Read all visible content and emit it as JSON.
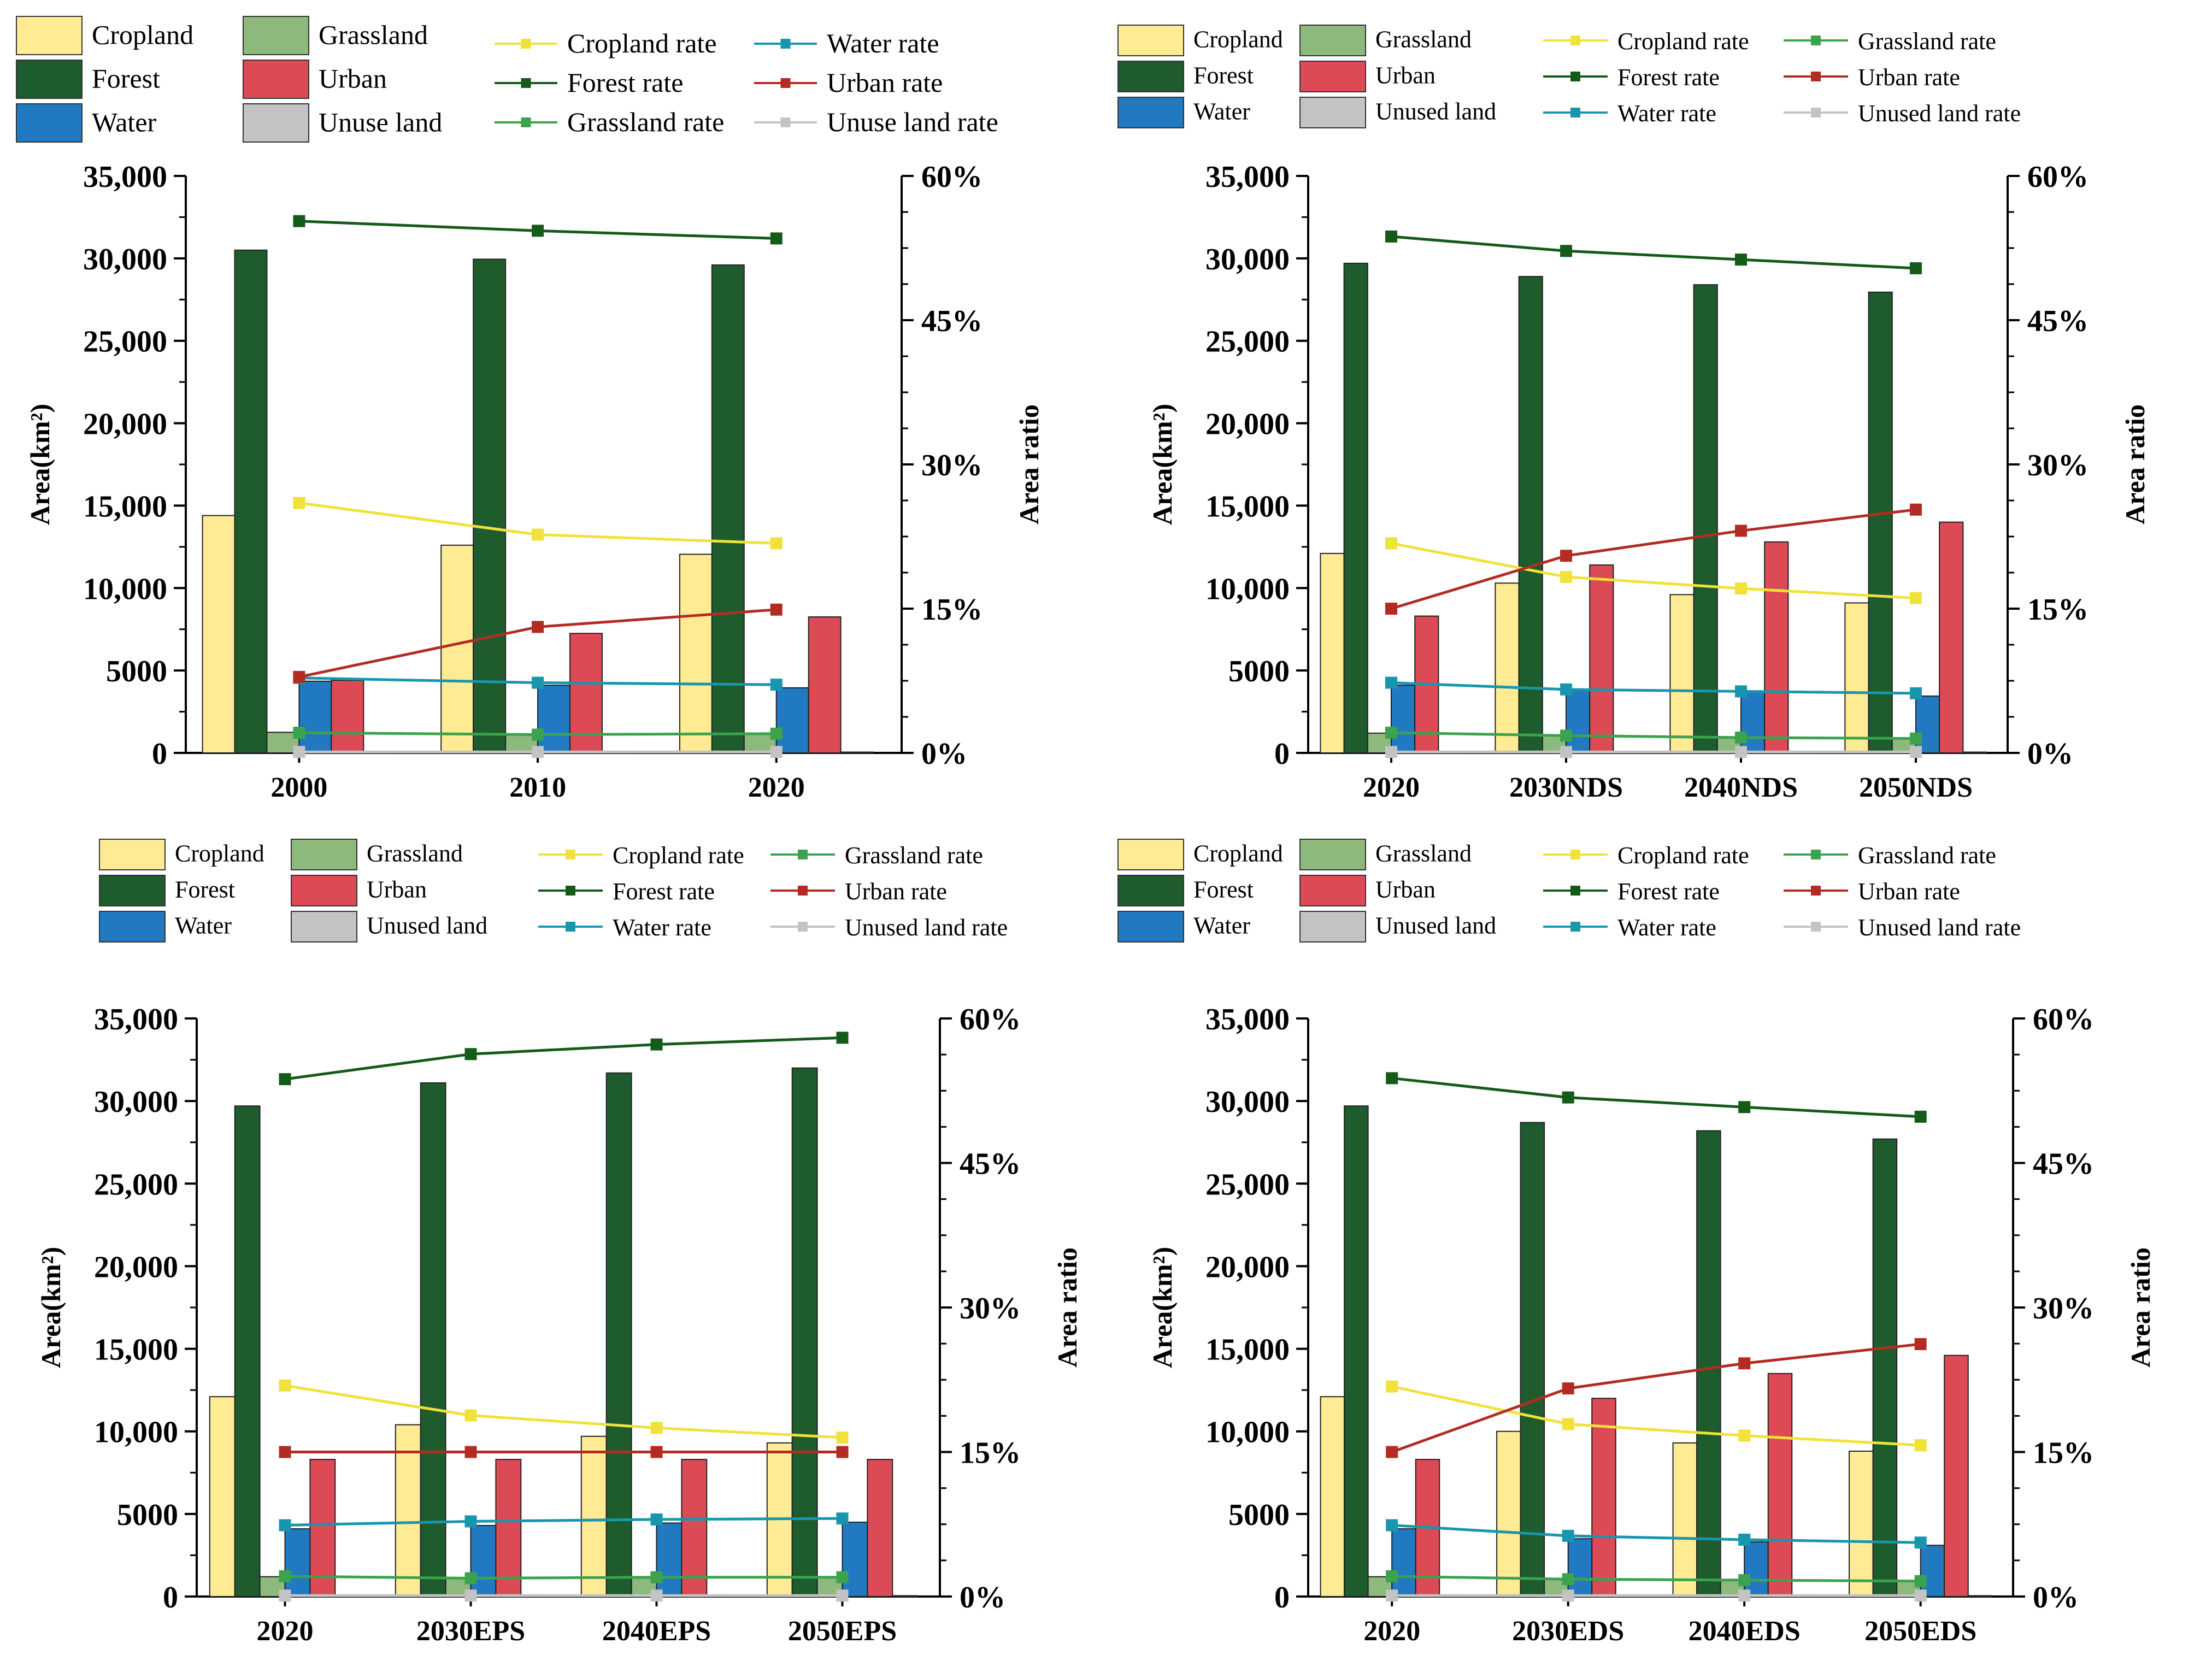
{
  "chart_data": [
    {
      "type": "bar",
      "panel": "top-left",
      "categories": [
        "2000",
        "2010",
        "2020"
      ],
      "ylabel": "Area(km²)",
      "y2label": "Area ratio",
      "ylim": [
        0,
        35000
      ],
      "y2lim": [
        0,
        60
      ],
      "yticks": [
        "0",
        "5000",
        "10,000",
        "15,000",
        "20,000",
        "25,000",
        "30,000",
        "35,000"
      ],
      "y2ticks": [
        "0%",
        "15%",
        "30%",
        "45%",
        "60%"
      ],
      "series": [
        {
          "name": "Cropland",
          "color": "#FFEB94",
          "values": [
            14400,
            12600,
            12050
          ]
        },
        {
          "name": "Forest",
          "color": "#1E5C2D",
          "values": [
            30500,
            29950,
            29600
          ]
        },
        {
          "name": "Grassland",
          "color": "#8DB97C",
          "values": [
            1250,
            1150,
            1200
          ]
        },
        {
          "name": "Water",
          "color": "#2179C2",
          "values": [
            4350,
            4100,
            3950
          ]
        },
        {
          "name": "Urban",
          "color": "#DC4B55",
          "values": [
            4400,
            7250,
            8250
          ]
        },
        {
          "name": "Unuse land",
          "color": "#C3C3C3",
          "values": [
            50,
            50,
            50
          ]
        }
      ],
      "rates": [
        {
          "name": "Cropland rate",
          "color": "#F0E23A",
          "values": [
            26.0,
            22.7,
            21.8
          ]
        },
        {
          "name": "Forest rate",
          "color": "#145A19",
          "values": [
            55.3,
            54.3,
            53.5
          ]
        },
        {
          "name": "Grassland rate",
          "color": "#3BA24E",
          "values": [
            2.1,
            1.9,
            2.0
          ]
        },
        {
          "name": "Water rate",
          "color": "#1796AE",
          "values": [
            7.8,
            7.3,
            7.1
          ]
        },
        {
          "name": "Urban rate",
          "color": "#B22C23",
          "values": [
            7.9,
            13.1,
            14.9
          ]
        },
        {
          "name": "Unuse land rate",
          "color": "#C3C3C3",
          "values": [
            0.1,
            0.1,
            0.1
          ]
        }
      ]
    },
    {
      "type": "bar",
      "panel": "top-right",
      "categories": [
        "2020",
        "2030NDS",
        "2040NDS",
        "2050NDS"
      ],
      "ylabel": "Area(km²)",
      "y2label": "Area ratio",
      "ylim": [
        0,
        35000
      ],
      "y2lim": [
        0,
        60
      ],
      "yticks": [
        "0",
        "5000",
        "10,000",
        "15,000",
        "20,000",
        "25,000",
        "30,000",
        "35,000"
      ],
      "y2ticks": [
        "0%",
        "15%",
        "30%",
        "45%",
        "60%"
      ],
      "series": [
        {
          "name": "Cropland",
          "color": "#FFEB94",
          "values": [
            12100,
            10300,
            9600,
            9100
          ]
        },
        {
          "name": "Forest",
          "color": "#1E5C2D",
          "values": [
            29700,
            28900,
            28400,
            27950
          ]
        },
        {
          "name": "Grassland",
          "color": "#8DB97C",
          "values": [
            1200,
            1050,
            950,
            900
          ]
        },
        {
          "name": "Water",
          "color": "#2179C2",
          "values": [
            4100,
            3800,
            3700,
            3450
          ]
        },
        {
          "name": "Urban",
          "color": "#DC4B55",
          "values": [
            8300,
            11400,
            12800,
            14000
          ]
        },
        {
          "name": "Unused land",
          "color": "#C3C3C3",
          "values": [
            50,
            50,
            50,
            50
          ]
        }
      ],
      "rates": [
        {
          "name": "Cropland rate",
          "color": "#F0E23A",
          "values": [
            21.8,
            18.3,
            17.1,
            16.1
          ]
        },
        {
          "name": "Grassland rate",
          "color": "#3BA24E",
          "values": [
            2.1,
            1.8,
            1.6,
            1.5
          ]
        },
        {
          "name": "Forest rate",
          "color": "#145A19",
          "values": [
            53.7,
            52.2,
            51.3,
            50.4
          ]
        },
        {
          "name": "Urban rate",
          "color": "#B22C23",
          "values": [
            15.0,
            20.5,
            23.1,
            25.3
          ]
        },
        {
          "name": "Water rate",
          "color": "#1796AE",
          "values": [
            7.3,
            6.6,
            6.4,
            6.2
          ]
        },
        {
          "name": "Unused land rate",
          "color": "#C3C3C3",
          "values": [
            0.1,
            0.1,
            0.1,
            0.1
          ]
        }
      ]
    },
    {
      "type": "bar",
      "panel": "bottom-left",
      "categories": [
        "2020",
        "2030EPS",
        "2040EPS",
        "2050EPS"
      ],
      "ylabel": "Area(km²)",
      "y2label": "Area ratio",
      "ylim": [
        0,
        35000
      ],
      "y2lim": [
        0,
        60
      ],
      "yticks": [
        "0",
        "5000",
        "10,000",
        "15,000",
        "20,000",
        "25,000",
        "30,000",
        "35,000"
      ],
      "y2ticks": [
        "0%",
        "15%",
        "30%",
        "45%",
        "60%"
      ],
      "series": [
        {
          "name": "Cropland",
          "color": "#FFEB94",
          "values": [
            12100,
            10400,
            9700,
            9300
          ]
        },
        {
          "name": "Forest",
          "color": "#1E5C2D",
          "values": [
            29700,
            31100,
            31700,
            32000
          ]
        },
        {
          "name": "Grassland",
          "color": "#8DB97C",
          "values": [
            1200,
            1100,
            1150,
            1150
          ]
        },
        {
          "name": "Water",
          "color": "#2179C2",
          "values": [
            4100,
            4300,
            4450,
            4500
          ]
        },
        {
          "name": "Urban",
          "color": "#DC4B55",
          "values": [
            8300,
            8300,
            8300,
            8300
          ]
        },
        {
          "name": "Unused land",
          "color": "#C3C3C3",
          "values": [
            50,
            50,
            50,
            50
          ]
        }
      ],
      "rates": [
        {
          "name": "Cropland rate",
          "color": "#F0E23A",
          "values": [
            21.9,
            18.8,
            17.5,
            16.5
          ]
        },
        {
          "name": "Grassland rate",
          "color": "#3BA24E",
          "values": [
            2.1,
            1.9,
            2.0,
            2.0
          ]
        },
        {
          "name": "Forest rate",
          "color": "#145A19",
          "values": [
            53.7,
            56.3,
            57.3,
            58.0
          ]
        },
        {
          "name": "Urban rate",
          "color": "#B22C23",
          "values": [
            15.0,
            15.0,
            15.0,
            15.0
          ]
        },
        {
          "name": "Water rate",
          "color": "#1796AE",
          "values": [
            7.4,
            7.8,
            8.0,
            8.1
          ]
        },
        {
          "name": "Unused land rate",
          "color": "#C3C3C3",
          "values": [
            0.1,
            0.1,
            0.1,
            0.1
          ]
        }
      ]
    },
    {
      "type": "bar",
      "panel": "bottom-right",
      "categories": [
        "2020",
        "2030EDS",
        "2040EDS",
        "2050EDS"
      ],
      "ylabel": "Area(km²)",
      "y2label": "Area ratio",
      "ylim": [
        0,
        35000
      ],
      "y2lim": [
        0,
        60
      ],
      "yticks": [
        "0",
        "5000",
        "10,000",
        "15,000",
        "20,000",
        "25,000",
        "30,000",
        "35,000"
      ],
      "y2ticks": [
        "0%",
        "15%",
        "30%",
        "45%",
        "60%"
      ],
      "series": [
        {
          "name": "Cropland",
          "color": "#FFEB94",
          "values": [
            12100,
            10000,
            9300,
            8800
          ]
        },
        {
          "name": "Forest",
          "color": "#1E5C2D",
          "values": [
            29700,
            28700,
            28200,
            27700
          ]
        },
        {
          "name": "Grassland",
          "color": "#8DB97C",
          "values": [
            1200,
            1050,
            1000,
            950
          ]
        },
        {
          "name": "Water",
          "color": "#2179C2",
          "values": [
            4100,
            3500,
            3300,
            3100
          ]
        },
        {
          "name": "Urban",
          "color": "#DC4B55",
          "values": [
            8300,
            12000,
            13500,
            14600
          ]
        },
        {
          "name": "Unused land",
          "color": "#C3C3C3",
          "values": [
            50,
            50,
            50,
            50
          ]
        }
      ],
      "rates": [
        {
          "name": "Cropland rate",
          "color": "#F0E23A",
          "values": [
            21.8,
            17.9,
            16.7,
            15.7
          ]
        },
        {
          "name": "Grassland rate",
          "color": "#3BA24E",
          "values": [
            2.1,
            1.8,
            1.7,
            1.6
          ]
        },
        {
          "name": "Forest rate",
          "color": "#145A19",
          "values": [
            53.8,
            51.8,
            50.8,
            49.8
          ]
        },
        {
          "name": "Urban rate",
          "color": "#B22C23",
          "values": [
            15.0,
            21.6,
            24.2,
            26.2
          ]
        },
        {
          "name": "Water rate",
          "color": "#1796AE",
          "values": [
            7.4,
            6.3,
            5.9,
            5.6
          ]
        },
        {
          "name": "Unused land rate",
          "color": "#C3C3C3",
          "values": [
            0.1,
            0.1,
            0.1,
            0.1
          ]
        }
      ]
    }
  ]
}
